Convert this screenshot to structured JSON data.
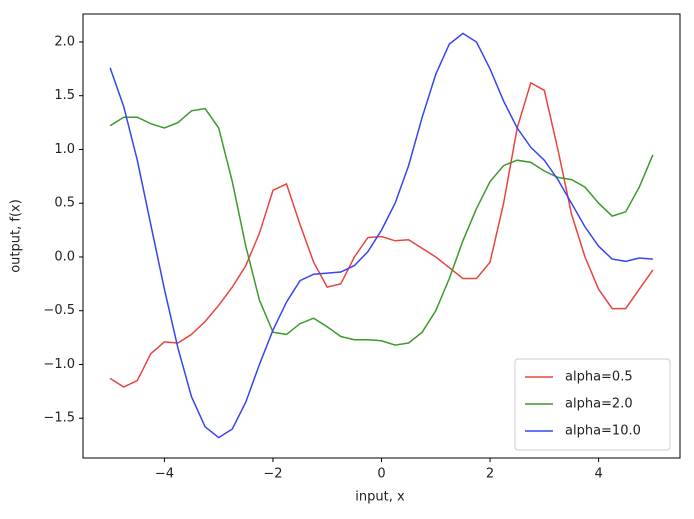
{
  "chart_data": {
    "type": "line",
    "xlabel": "input, x",
    "ylabel": "output, f(x)",
    "x": [
      -5,
      -4.75,
      -4.5,
      -4.25,
      -4,
      -3.75,
      -3.5,
      -3.25,
      -3,
      -2.75,
      -2.5,
      -2.25,
      -2,
      -1.75,
      -1.5,
      -1.25,
      -1,
      -0.75,
      -0.5,
      -0.25,
      0,
      0.25,
      0.5,
      0.75,
      1,
      1.25,
      1.5,
      1.75,
      2,
      2.25,
      2.5,
      2.75,
      3,
      3.25,
      3.5,
      3.75,
      4,
      4.25,
      4.5,
      4.75,
      5
    ],
    "series": [
      {
        "name": "alpha=0.5",
        "color": "#e8453c",
        "values": [
          -1.13,
          -1.21,
          -1.15,
          -0.9,
          -0.79,
          -0.8,
          -0.72,
          -0.6,
          -0.45,
          -0.28,
          -0.08,
          0.22,
          0.62,
          0.68,
          0.3,
          -0.05,
          -0.28,
          -0.25,
          0.0,
          0.18,
          0.19,
          0.15,
          0.16,
          0.08,
          0.0,
          -0.1,
          -0.2,
          -0.2,
          -0.05,
          0.5,
          1.2,
          1.62,
          1.55,
          1.0,
          0.4,
          0.0,
          -0.3,
          -0.48,
          -0.48,
          -0.3,
          -0.12
        ]
      },
      {
        "name": "alpha=2.0",
        "color": "#3c9a2c",
        "values": [
          1.22,
          1.3,
          1.3,
          1.24,
          1.2,
          1.25,
          1.36,
          1.38,
          1.2,
          0.7,
          0.1,
          -0.4,
          -0.7,
          -0.72,
          -0.62,
          -0.57,
          -0.65,
          -0.74,
          -0.77,
          -0.77,
          -0.78,
          -0.82,
          -0.8,
          -0.7,
          -0.5,
          -0.2,
          0.15,
          0.45,
          0.7,
          0.85,
          0.9,
          0.88,
          0.8,
          0.74,
          0.72,
          0.65,
          0.5,
          0.38,
          0.42,
          0.65,
          0.95
        ]
      },
      {
        "name": "alpha=10.0",
        "color": "#3546f0",
        "values": [
          1.76,
          1.4,
          0.9,
          0.3,
          -0.3,
          -0.85,
          -1.3,
          -1.58,
          -1.68,
          -1.6,
          -1.35,
          -1.0,
          -0.68,
          -0.42,
          -0.22,
          -0.16,
          -0.15,
          -0.14,
          -0.08,
          0.05,
          0.25,
          0.5,
          0.85,
          1.3,
          1.7,
          1.98,
          2.08,
          2.0,
          1.75,
          1.45,
          1.2,
          1.02,
          0.9,
          0.72,
          0.5,
          0.28,
          0.1,
          -0.02,
          -0.04,
          -0.01,
          -0.02
        ]
      }
    ],
    "xlim": [
      -5.5,
      5.5
    ],
    "xticks": [
      {
        "value": -4,
        "label": "−4"
      },
      {
        "value": -2,
        "label": "−2"
      },
      0,
      2,
      4
    ],
    "ylim": [
      -1.87,
      2.26
    ],
    "yticks": [
      {
        "value": -1.5,
        "label": "−1.5"
      },
      {
        "value": -1,
        "label": "−1.0"
      },
      {
        "value": -0.5,
        "label": "−0.5"
      },
      {
        "value": 0,
        "label": "0.0"
      },
      {
        "value": 0.5,
        "label": "0.5"
      },
      {
        "value": 1,
        "label": "1.0"
      },
      {
        "value": 1.5,
        "label": "1.5"
      },
      {
        "value": 2,
        "label": "2.0"
      }
    ],
    "legend": "lower right",
    "grid": false
  }
}
